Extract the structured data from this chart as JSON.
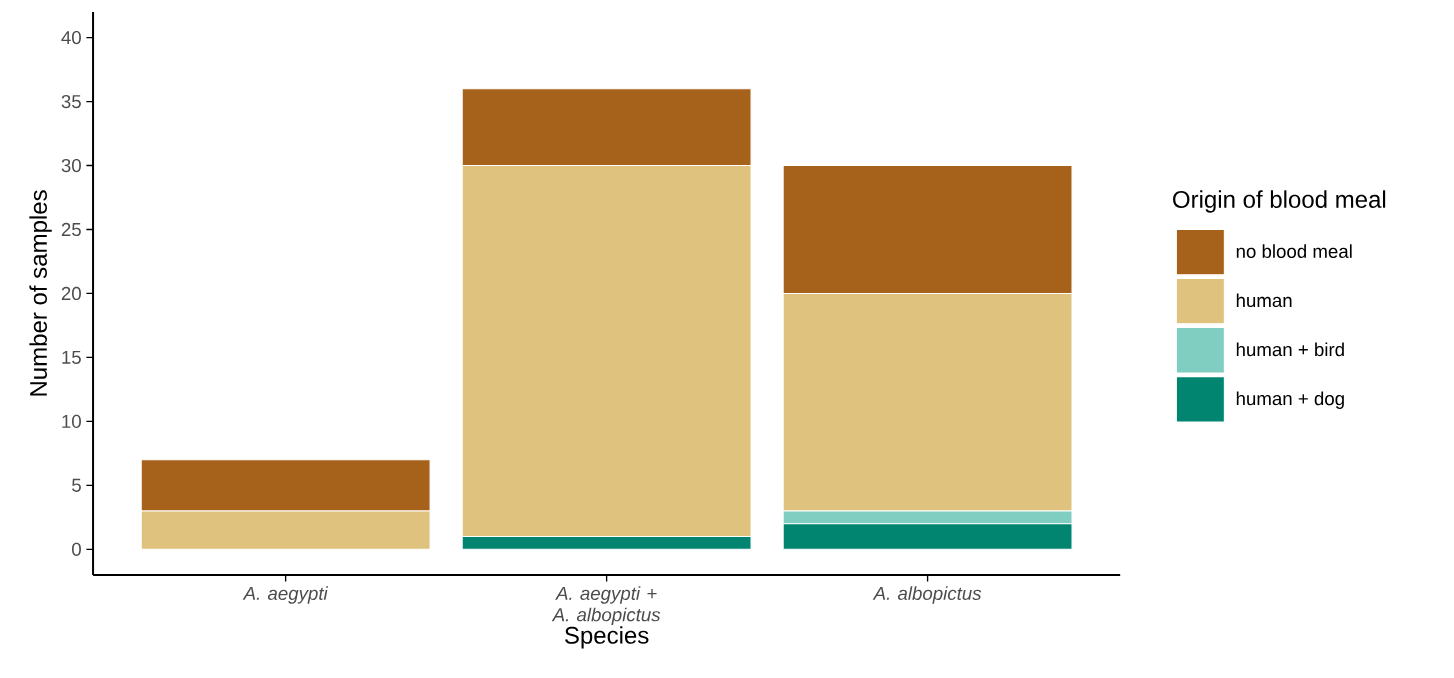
{
  "chart_data": {
    "type": "bar",
    "stacked": true,
    "xlabel": "Species",
    "ylabel": "Number of samples",
    "legend_title": "Origin of blood meal",
    "legend": "right",
    "categories": [
      "A. aegypti",
      "A. aegypti + A. albopictus",
      "A. albopictus"
    ],
    "ylim": [
      -2,
      42
    ],
    "yticks": [
      0,
      5,
      10,
      15,
      20,
      25,
      30,
      35,
      40
    ],
    "grid": false,
    "series": [
      {
        "name": "human + dog",
        "color": "#018571",
        "values": [
          0,
          1,
          2
        ]
      },
      {
        "name": "human + bird",
        "color": "#80cdc1",
        "values": [
          0,
          0,
          1
        ]
      },
      {
        "name": "human",
        "color": "#dfc27d",
        "values": [
          3,
          29,
          17
        ]
      },
      {
        "name": "no blood meal",
        "color": "#a6611a",
        "values": [
          4,
          6,
          10
        ]
      }
    ]
  }
}
